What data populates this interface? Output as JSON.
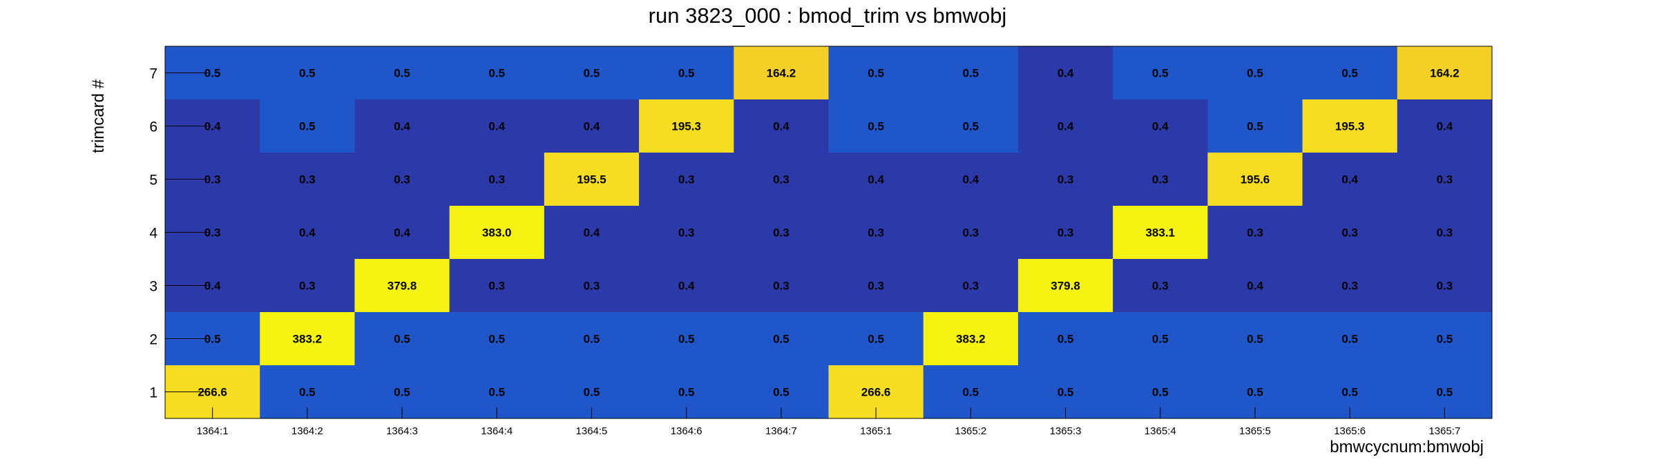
{
  "chart_data": {
    "type": "heatmap",
    "title": "run 3823_000 : bmod_trim vs bmwobj",
    "xlabel": "bmwcycnum:bmwobj",
    "ylabel": "trimcard #",
    "x_categories": [
      "1364:1",
      "1364:2",
      "1364:3",
      "1364:4",
      "1364:5",
      "1364:6",
      "1364:7",
      "1365:1",
      "1365:2",
      "1365:3",
      "1365:4",
      "1365:5",
      "1365:6",
      "1365:7"
    ],
    "y_categories": [
      "1",
      "2",
      "3",
      "4",
      "5",
      "6",
      "7"
    ],
    "rows": [
      {
        "y": "7",
        "values": [
          0.5,
          0.5,
          0.5,
          0.5,
          0.5,
          0.5,
          164.2,
          0.5,
          0.5,
          0.4,
          0.5,
          0.5,
          0.5,
          164.2
        ]
      },
      {
        "y": "6",
        "values": [
          0.4,
          0.5,
          0.4,
          0.4,
          0.4,
          195.3,
          0.4,
          0.5,
          0.5,
          0.4,
          0.4,
          0.5,
          195.3,
          0.4
        ]
      },
      {
        "y": "5",
        "values": [
          0.3,
          0.3,
          0.3,
          0.3,
          195.5,
          0.3,
          0.3,
          0.4,
          0.4,
          0.3,
          0.3,
          195.6,
          0.4,
          0.3
        ]
      },
      {
        "y": "4",
        "values": [
          0.3,
          0.4,
          0.4,
          383.0,
          0.4,
          0.3,
          0.3,
          0.3,
          0.3,
          0.3,
          383.1,
          0.3,
          0.3,
          0.3
        ]
      },
      {
        "y": "3",
        "values": [
          0.4,
          0.3,
          379.8,
          0.3,
          0.3,
          0.4,
          0.3,
          0.3,
          0.3,
          379.8,
          0.3,
          0.4,
          0.3,
          0.3
        ]
      },
      {
        "y": "2",
        "values": [
          0.5,
          383.2,
          0.5,
          0.5,
          0.5,
          0.5,
          0.5,
          0.5,
          383.2,
          0.5,
          0.5,
          0.5,
          0.5,
          0.5
        ]
      },
      {
        "y": "1",
        "values": [
          266.6,
          0.5,
          0.5,
          0.5,
          0.5,
          0.5,
          0.5,
          266.6,
          0.5,
          0.5,
          0.5,
          0.5,
          0.5,
          0.5
        ]
      }
    ],
    "colors": {
      "low": "#2b3aa8",
      "mid": "#1f56c9",
      "high_yellow": "#f6f312",
      "orange_yellow": "#f4cf25",
      "gold": "#f7dd21"
    }
  }
}
